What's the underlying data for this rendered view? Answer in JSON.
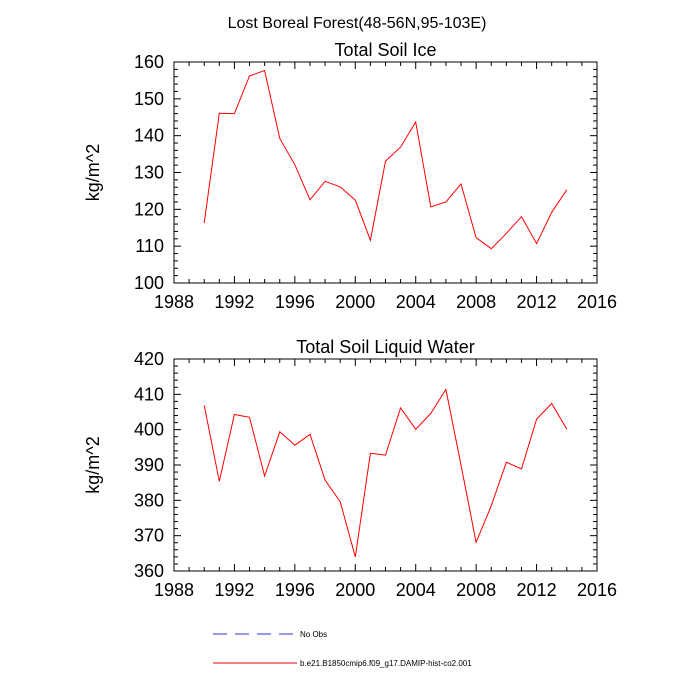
{
  "figure_title": "Lost Boreal Forest(48-56N,95-103E)",
  "chart_data": [
    {
      "type": "line",
      "title": "Total Soil Ice",
      "xlabel": "",
      "ylabel": "kg/m^2",
      "xlim": [
        1988,
        2016
      ],
      "ylim": [
        100,
        160
      ],
      "xticks": [
        1988,
        1992,
        1996,
        2000,
        2004,
        2008,
        2012,
        2016
      ],
      "yticks": [
        100,
        110,
        120,
        130,
        140,
        150,
        160
      ],
      "grid": false,
      "series": [
        {
          "name": "b.e21.B1850cmip6.f09_g17.DAMIP-hist-co2.001",
          "color": "#ff0000",
          "x": [
            1990,
            1991,
            1992,
            1993,
            1994,
            1995,
            1996,
            1997,
            1998,
            1999,
            2000,
            2001,
            2002,
            2003,
            2004,
            2005,
            2006,
            2007,
            2008,
            2009,
            2010,
            2011,
            2012,
            2013,
            2014
          ],
          "values": [
            116.3,
            146.1,
            146.0,
            156.2,
            157.7,
            139.2,
            132.1,
            122.6,
            127.6,
            126.1,
            122.5,
            111.6,
            133.1,
            136.9,
            143.7,
            120.7,
            122.0,
            126.9,
            112.3,
            109.3,
            113.5,
            118.0,
            110.7,
            119.2,
            125.3
          ]
        }
      ]
    },
    {
      "type": "line",
      "title": "Total Soil Liquid Water",
      "xlabel": "",
      "ylabel": "kg/m^2",
      "xlim": [
        1988,
        2016
      ],
      "ylim": [
        360,
        420
      ],
      "xticks": [
        1988,
        1992,
        1996,
        2000,
        2004,
        2008,
        2012,
        2016
      ],
      "yticks": [
        360,
        370,
        380,
        390,
        400,
        410,
        420
      ],
      "grid": false,
      "series": [
        {
          "name": "b.e21.B1850cmip6.f09_g17.DAMIP-hist-co2.001",
          "color": "#ff0000",
          "x": [
            1990,
            1991,
            1992,
            1993,
            1994,
            1995,
            1996,
            1997,
            1998,
            1999,
            2000,
            2001,
            2002,
            2003,
            2004,
            2005,
            2006,
            2007,
            2008,
            2009,
            2010,
            2011,
            2012,
            2013,
            2014
          ],
          "values": [
            406.9,
            385.4,
            404.3,
            403.5,
            386.9,
            399.4,
            395.6,
            398.7,
            385.7,
            379.6,
            364.0,
            393.3,
            392.8,
            406.2,
            400.1,
            404.6,
            411.4,
            390.0,
            368.1,
            378.5,
            390.8,
            388.9,
            403.0,
            407.4,
            400.1
          ]
        }
      ]
    }
  ],
  "legend": [
    {
      "label": "No Obs",
      "color": "#3333cc",
      "style": "dashed"
    },
    {
      "label": "b.e21.B1850cmip6.f09_g17.DAMIP-hist-co2.001",
      "color": "#ff0000",
      "style": "solid"
    }
  ]
}
